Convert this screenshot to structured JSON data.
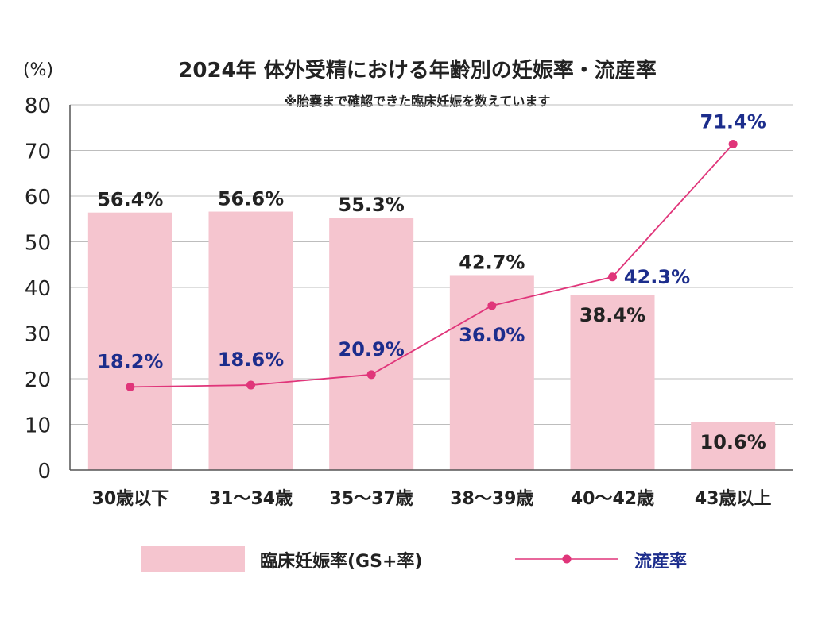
{
  "chart_data": {
    "type": "bar",
    "title": "2024年 体外受精における年齢別の妊娠率・流産率",
    "subtitle": "※胎嚢まで確認できた臨床妊娠を数えています",
    "ylabel": "(%)",
    "ylim": [
      0,
      80
    ],
    "yticks": [
      "0",
      "10",
      "20",
      "30",
      "40",
      "50",
      "60",
      "70",
      "80"
    ],
    "grid": true,
    "legend_position": "bottom",
    "categories": [
      "30歳以下",
      "31〜34歳",
      "35〜37歳",
      "38〜39歳",
      "40〜42歳",
      "43歳以上"
    ],
    "series": [
      {
        "name": "臨床妊娠率(GS+率)",
        "kind": "bar",
        "color": "#f5c5cf",
        "values": [
          56.4,
          56.6,
          55.3,
          42.7,
          38.4,
          10.6
        ],
        "labels": [
          "56.4%",
          "56.6%",
          "55.3%",
          "42.7%",
          "38.4%",
          "10.6%"
        ]
      },
      {
        "name": "流産率",
        "kind": "line",
        "color": "#e0357a",
        "label_color": "#1c2d8c",
        "values": [
          18.2,
          18.6,
          20.9,
          36.0,
          42.3,
          71.4
        ],
        "labels": [
          "18.2%",
          "18.6%",
          "20.9%",
          "36.0%",
          "42.3%",
          "71.4%"
        ]
      }
    ]
  }
}
